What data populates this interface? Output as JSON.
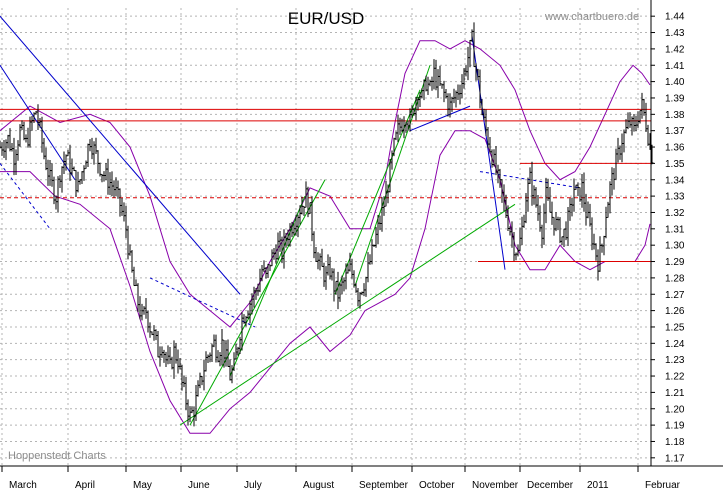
{
  "chart_data": {
    "type": "line",
    "chart_style": "high-low price bars with trendlines and envelope bands",
    "title": "EUR/USD",
    "source_label": "www.chartbuero.de",
    "footer_label": "Hoppenstedt Charts",
    "xlabel": "",
    "ylabel": "",
    "ylim": [
      1.165,
      1.445
    ],
    "y_axis_side": "right",
    "y_ticks": [
      "1.17",
      "1.18",
      "1.19",
      "1.20",
      "1.21",
      "1.22",
      "1.23",
      "1.24",
      "1.25",
      "1.26",
      "1.27",
      "1.28",
      "1.29",
      "1.30",
      "1.31",
      "1.32",
      "1.33",
      "1.34",
      "1.35",
      "1.36",
      "1.37",
      "1.38",
      "1.39",
      "1.40",
      "1.41",
      "1.42",
      "1.43",
      "1.44"
    ],
    "x_tick_labels": [
      "March",
      "April",
      "May",
      "June",
      "July",
      "August",
      "September",
      "October",
      "November",
      "December",
      "2011",
      "Februar"
    ],
    "grid": "dotted",
    "colors": {
      "price": "#000000",
      "bands": "#8800aa",
      "down_trend": "#0000cc",
      "up_trend": "#00aa00",
      "levels": "#dd0000",
      "grid": "#b4b4b4"
    },
    "price_path": [
      [
        0,
        1.36
      ],
      [
        8,
        1.365
      ],
      [
        14,
        1.355
      ],
      [
        20,
        1.37
      ],
      [
        26,
        1.362
      ],
      [
        32,
        1.375
      ],
      [
        36,
        1.382
      ],
      [
        40,
        1.37
      ],
      [
        44,
        1.355
      ],
      [
        50,
        1.34
      ],
      [
        56,
        1.33
      ],
      [
        60,
        1.345
      ],
      [
        66,
        1.355
      ],
      [
        72,
        1.345
      ],
      [
        78,
        1.335
      ],
      [
        84,
        1.35
      ],
      [
        90,
        1.365
      ],
      [
        96,
        1.355
      ],
      [
        102,
        1.345
      ],
      [
        108,
        1.34
      ],
      [
        114,
        1.335
      ],
      [
        120,
        1.325
      ],
      [
        126,
        1.31
      ],
      [
        130,
        1.29
      ],
      [
        134,
        1.275
      ],
      [
        138,
        1.265
      ],
      [
        142,
        1.255
      ],
      [
        146,
        1.26
      ],
      [
        150,
        1.25
      ],
      [
        154,
        1.245
      ],
      [
        158,
        1.235
      ],
      [
        162,
        1.24
      ],
      [
        166,
        1.23
      ],
      [
        170,
        1.225
      ],
      [
        174,
        1.235
      ],
      [
        178,
        1.23
      ],
      [
        182,
        1.215
      ],
      [
        186,
        1.205
      ],
      [
        190,
        1.195
      ],
      [
        194,
        1.2
      ],
      [
        198,
        1.21
      ],
      [
        202,
        1.22
      ],
      [
        206,
        1.23
      ],
      [
        210,
        1.235
      ],
      [
        214,
        1.24
      ],
      [
        218,
        1.235
      ],
      [
        222,
        1.24
      ],
      [
        226,
        1.23
      ],
      [
        230,
        1.22
      ],
      [
        234,
        1.225
      ],
      [
        238,
        1.24
      ],
      [
        242,
        1.255
      ],
      [
        246,
        1.26
      ],
      [
        250,
        1.265
      ],
      [
        254,
        1.27
      ],
      [
        258,
        1.275
      ],
      [
        262,
        1.285
      ],
      [
        266,
        1.28
      ],
      [
        270,
        1.29
      ],
      [
        274,
        1.295
      ],
      [
        278,
        1.3
      ],
      [
        282,
        1.295
      ],
      [
        286,
        1.305
      ],
      [
        290,
        1.31
      ],
      [
        294,
        1.315
      ],
      [
        298,
        1.32
      ],
      [
        302,
        1.325
      ],
      [
        306,
        1.33
      ],
      [
        310,
        1.32
      ],
      [
        314,
        1.3
      ],
      [
        318,
        1.29
      ],
      [
        322,
        1.285
      ],
      [
        326,
        1.28
      ],
      [
        330,
        1.285
      ],
      [
        334,
        1.275
      ],
      [
        338,
        1.27
      ],
      [
        342,
        1.275
      ],
      [
        346,
        1.28
      ],
      [
        350,
        1.285
      ],
      [
        354,
        1.28
      ],
      [
        358,
        1.27
      ],
      [
        362,
        1.275
      ],
      [
        366,
        1.28
      ],
      [
        370,
        1.29
      ],
      [
        374,
        1.3
      ],
      [
        378,
        1.31
      ],
      [
        382,
        1.32
      ],
      [
        386,
        1.33
      ],
      [
        390,
        1.345
      ],
      [
        394,
        1.36
      ],
      [
        398,
        1.37
      ],
      [
        402,
        1.375
      ],
      [
        406,
        1.38
      ],
      [
        410,
        1.375
      ],
      [
        414,
        1.385
      ],
      [
        418,
        1.395
      ],
      [
        422,
        1.39
      ],
      [
        426,
        1.4
      ],
      [
        430,
        1.395
      ],
      [
        434,
        1.405
      ],
      [
        438,
        1.398
      ],
      [
        442,
        1.395
      ],
      [
        446,
        1.39
      ],
      [
        450,
        1.385
      ],
      [
        454,
        1.39
      ],
      [
        458,
        1.395
      ],
      [
        462,
        1.4
      ],
      [
        466,
        1.41
      ],
      [
        470,
        1.42
      ],
      [
        472,
        1.425
      ],
      [
        474,
        1.415
      ],
      [
        478,
        1.4
      ],
      [
        482,
        1.38
      ],
      [
        486,
        1.37
      ],
      [
        490,
        1.36
      ],
      [
        494,
        1.35
      ],
      [
        498,
        1.34
      ],
      [
        502,
        1.33
      ],
      [
        506,
        1.32
      ],
      [
        510,
        1.31
      ],
      [
        514,
        1.3
      ],
      [
        518,
        1.295
      ],
      [
        522,
        1.31
      ],
      [
        526,
        1.33
      ],
      [
        530,
        1.34
      ],
      [
        534,
        1.33
      ],
      [
        538,
        1.32
      ],
      [
        542,
        1.31
      ],
      [
        546,
        1.33
      ],
      [
        550,
        1.32
      ],
      [
        554,
        1.315
      ],
      [
        558,
        1.31
      ],
      [
        562,
        1.305
      ],
      [
        566,
        1.31
      ],
      [
        570,
        1.32
      ],
      [
        574,
        1.335
      ],
      [
        578,
        1.33
      ],
      [
        582,
        1.335
      ],
      [
        586,
        1.32
      ],
      [
        590,
        1.31
      ],
      [
        594,
        1.3
      ],
      [
        598,
        1.29
      ],
      [
        602,
        1.3
      ],
      [
        606,
        1.32
      ],
      [
        610,
        1.335
      ],
      [
        614,
        1.345
      ],
      [
        618,
        1.355
      ],
      [
        622,
        1.365
      ],
      [
        626,
        1.37
      ],
      [
        630,
        1.375
      ],
      [
        634,
        1.37
      ],
      [
        638,
        1.38
      ],
      [
        642,
        1.385
      ],
      [
        646,
        1.375
      ],
      [
        650,
        1.36
      ],
      [
        652,
        1.355
      ]
    ],
    "bands_upper": [
      [
        0,
        1.37
      ],
      [
        30,
        1.385
      ],
      [
        60,
        1.375
      ],
      [
        90,
        1.38
      ],
      [
        110,
        1.375
      ],
      [
        130,
        1.36
      ],
      [
        150,
        1.33
      ],
      [
        170,
        1.29
      ],
      [
        190,
        1.27
      ],
      [
        210,
        1.26
      ],
      [
        230,
        1.25
      ],
      [
        250,
        1.265
      ],
      [
        270,
        1.29
      ],
      [
        290,
        1.31
      ],
      [
        310,
        1.335
      ],
      [
        330,
        1.33
      ],
      [
        350,
        1.31
      ],
      [
        370,
        1.31
      ],
      [
        385,
        1.34
      ],
      [
        395,
        1.375
      ],
      [
        405,
        1.405
      ],
      [
        420,
        1.425
      ],
      [
        435,
        1.425
      ],
      [
        450,
        1.42
      ],
      [
        465,
        1.425
      ],
      [
        480,
        1.42
      ],
      [
        500,
        1.41
      ],
      [
        515,
        1.395
      ],
      [
        530,
        1.37
      ],
      [
        545,
        1.35
      ],
      [
        560,
        1.34
      ],
      [
        575,
        1.345
      ],
      [
        590,
        1.36
      ],
      [
        605,
        1.38
      ],
      [
        620,
        1.4
      ],
      [
        633,
        1.41
      ],
      [
        642,
        1.405
      ],
      [
        650,
        1.398
      ]
    ],
    "bands_lower": [
      [
        0,
        1.345
      ],
      [
        30,
        1.345
      ],
      [
        55,
        1.33
      ],
      [
        80,
        1.325
      ],
      [
        110,
        1.31
      ],
      [
        130,
        1.275
      ],
      [
        150,
        1.235
      ],
      [
        170,
        1.205
      ],
      [
        190,
        1.185
      ],
      [
        210,
        1.185
      ],
      [
        230,
        1.2
      ],
      [
        250,
        1.21
      ],
      [
        270,
        1.225
      ],
      [
        290,
        1.24
      ],
      [
        310,
        1.25
      ],
      [
        330,
        1.235
      ],
      [
        350,
        1.245
      ],
      [
        365,
        1.26
      ],
      [
        380,
        1.265
      ],
      [
        395,
        1.27
      ],
      [
        410,
        1.28
      ],
      [
        425,
        1.31
      ],
      [
        440,
        1.355
      ],
      [
        455,
        1.37
      ],
      [
        470,
        1.37
      ],
      [
        485,
        1.365
      ],
      [
        500,
        1.34
      ],
      [
        515,
        1.3
      ],
      [
        530,
        1.285
      ],
      [
        545,
        1.285
      ],
      [
        560,
        1.3
      ],
      [
        575,
        1.29
      ],
      [
        590,
        1.285
      ],
      [
        605,
        1.29
      ],
      [
        620,
        1.29
      ],
      [
        635,
        1.29
      ],
      [
        645,
        1.3
      ],
      [
        650,
        1.313
      ]
    ],
    "trendlines": [
      {
        "kind": "down",
        "style": "solid",
        "points": [
          [
            0,
            1.44
          ],
          [
            240,
            1.27
          ]
        ]
      },
      {
        "kind": "down",
        "style": "solid",
        "points": [
          [
            0,
            1.41
          ],
          [
            75,
            1.34
          ]
        ]
      },
      {
        "kind": "down",
        "style": "dashed",
        "points": [
          [
            0,
            1.35
          ],
          [
            50,
            1.31
          ]
        ]
      },
      {
        "kind": "down",
        "style": "solid",
        "points": [
          [
            472,
            1.428
          ],
          [
            505,
            1.285
          ]
        ]
      },
      {
        "kind": "down",
        "style": "solid",
        "points": [
          [
            410,
            1.37
          ],
          [
            470,
            1.385
          ]
        ]
      },
      {
        "kind": "down",
        "style": "dashed",
        "points": [
          [
            150,
            1.28
          ],
          [
            255,
            1.25
          ]
        ]
      },
      {
        "kind": "down",
        "style": "dashed",
        "points": [
          [
            480,
            1.345
          ],
          [
            580,
            1.335
          ]
        ]
      },
      {
        "kind": "up",
        "style": "solid",
        "points": [
          [
            180,
            1.19
          ],
          [
            515,
            1.325
          ]
        ]
      },
      {
        "kind": "up",
        "style": "solid",
        "points": [
          [
            190,
            1.19
          ],
          [
            325,
            1.34
          ]
        ]
      },
      {
        "kind": "up",
        "style": "solid",
        "points": [
          [
            230,
            1.22
          ],
          [
            305,
            1.33
          ]
        ]
      },
      {
        "kind": "up",
        "style": "solid",
        "points": [
          [
            335,
            1.27
          ],
          [
            420,
            1.395
          ]
        ]
      },
      {
        "kind": "up",
        "style": "solid",
        "points": [
          [
            355,
            1.275
          ],
          [
            430,
            1.41
          ]
        ]
      }
    ],
    "levels": [
      {
        "value": 1.383,
        "style": "solid",
        "from": 0,
        "to": 651
      },
      {
        "value": 1.376,
        "style": "solid",
        "from": 0,
        "to": 651
      },
      {
        "value": 1.329,
        "style": "dashed",
        "from": 0,
        "to": 651
      },
      {
        "value": 1.35,
        "style": "solid",
        "from": 520,
        "to": 651
      },
      {
        "value": 1.29,
        "style": "solid",
        "from": 478,
        "to": 651
      }
    ]
  }
}
